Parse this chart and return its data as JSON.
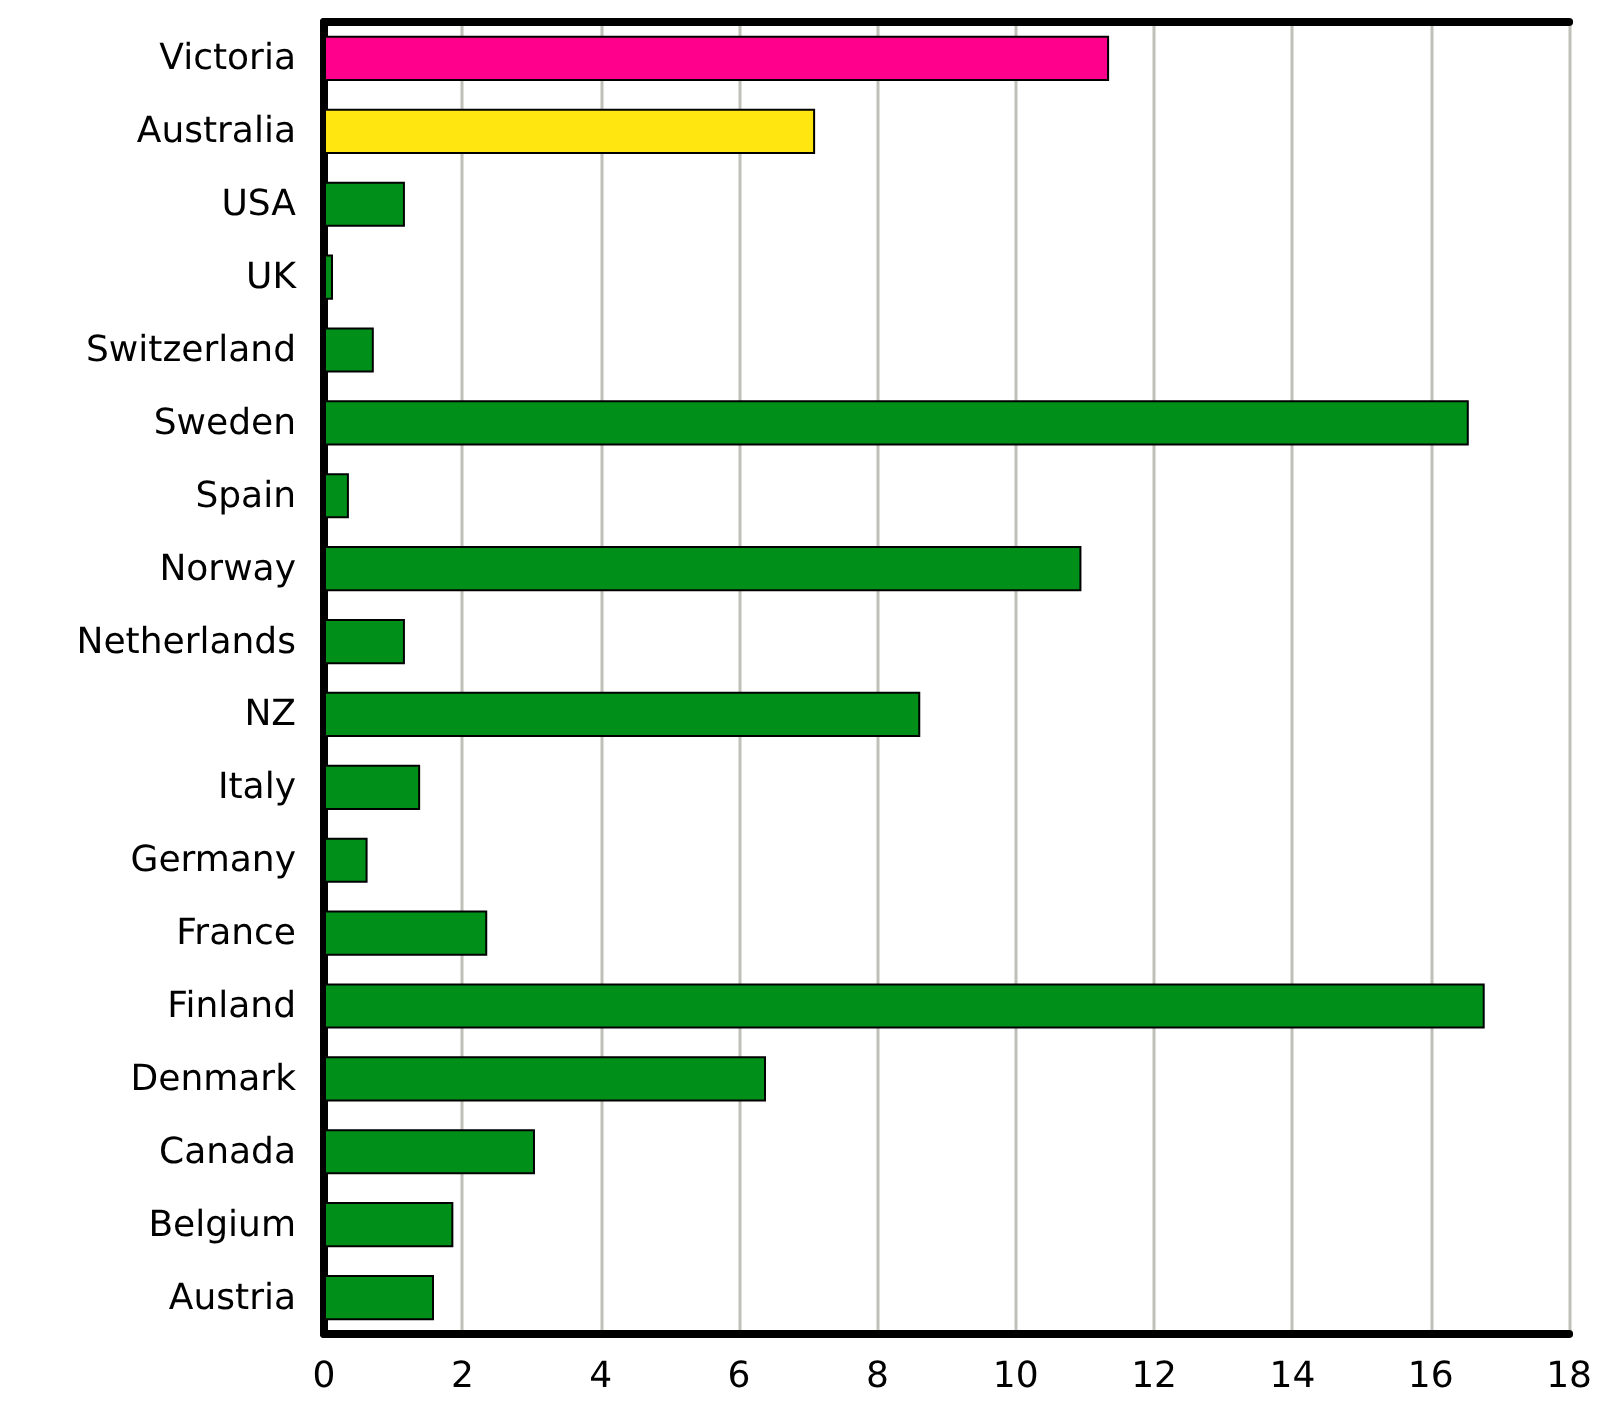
{
  "chart_data": {
    "type": "bar",
    "orientation": "horizontal",
    "categories": [
      "Victoria",
      "Australia",
      "USA",
      "UK",
      "Switzerland",
      "Sweden",
      "Spain",
      "Norway",
      "Netherlands",
      "NZ",
      "Italy",
      "Germany",
      "France",
      "Finland",
      "Denmark",
      "Canada",
      "Belgium",
      "Austria"
    ],
    "values": [
      11.35,
      7.1,
      1.17,
      0.13,
      0.72,
      16.55,
      0.36,
      10.95,
      1.17,
      8.62,
      1.39,
      0.63,
      2.36,
      16.78,
      6.39,
      3.05,
      1.87,
      1.59
    ],
    "colors": [
      "#ff008c",
      "#ffe610",
      "#00901a",
      "#00901a",
      "#00901a",
      "#00901a",
      "#00901a",
      "#00901a",
      "#00901a",
      "#00901a",
      "#00901a",
      "#00901a",
      "#00901a",
      "#00901a",
      "#00901a",
      "#00901a",
      "#00901a",
      "#00901a"
    ],
    "xlim": [
      0,
      18
    ],
    "xticks": [
      0,
      2,
      4,
      6,
      8,
      10,
      12,
      14,
      16,
      18
    ],
    "grid": "x"
  }
}
